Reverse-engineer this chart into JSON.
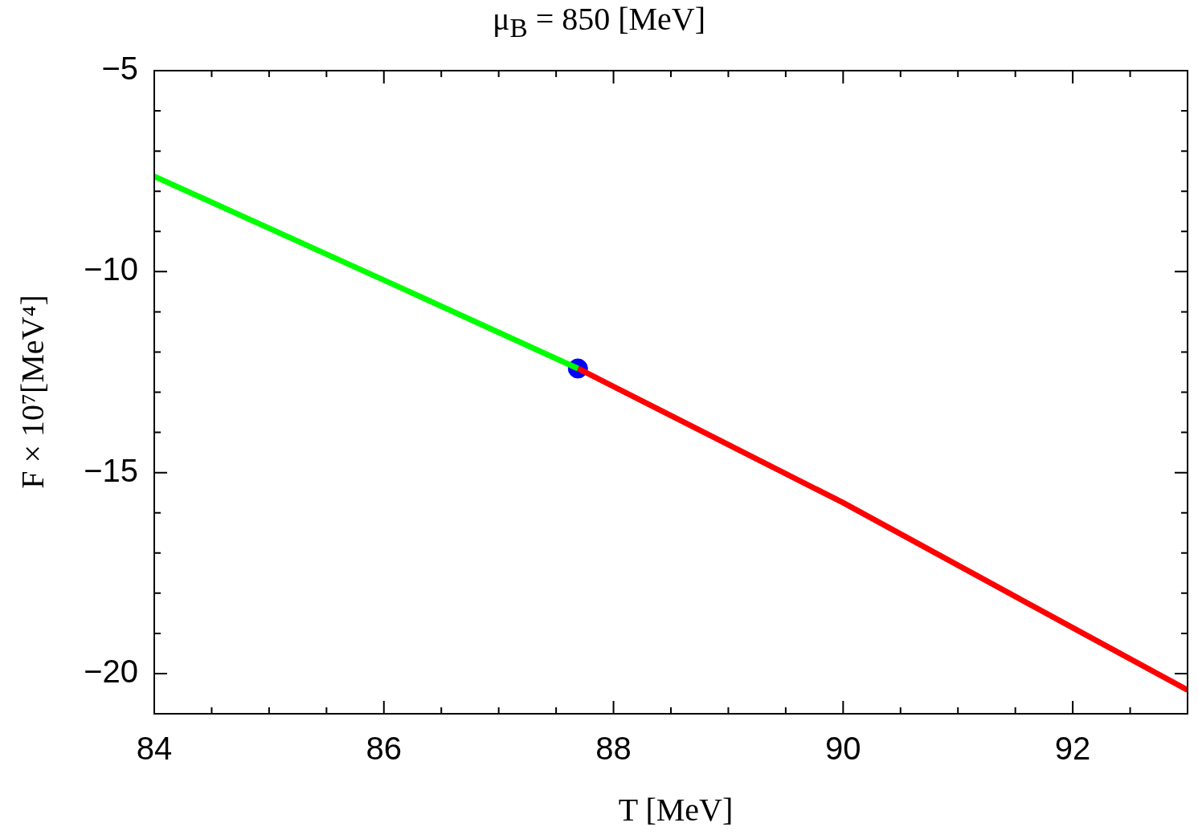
{
  "chart_data": {
    "type": "line",
    "title": "μ$_{B}$ = 850 [MeV]",
    "xlabel": "T [MeV]",
    "ylabel": "F × 10⁷[MeV⁴]",
    "xlim": [
      84,
      93
    ],
    "ylim": [
      -21,
      -5
    ],
    "xticks": [
      84,
      {
        "value": 84.5,
        "label": null
      },
      {
        "value": 85,
        "label": null
      },
      {
        "value": 85.5,
        "label": null
      },
      86,
      {
        "value": 86.5,
        "label": null
      },
      {
        "value": 87,
        "label": null
      },
      {
        "value": 87.5,
        "label": null
      },
      88,
      {
        "value": 88.5,
        "label": null
      },
      {
        "value": 89,
        "label": null
      },
      {
        "value": 89.5,
        "label": null
      },
      90,
      {
        "value": 90.5,
        "label": null
      },
      {
        "value": 91,
        "label": null
      },
      {
        "value": 91.5,
        "label": null
      },
      92,
      {
        "value": 92.5,
        "label": null
      }
    ],
    "yticks": [
      -5,
      {
        "value": -6,
        "label": null
      },
      {
        "value": -7,
        "label": null
      },
      {
        "value": -8,
        "label": null
      },
      {
        "value": -9,
        "label": null
      },
      -10,
      {
        "value": -11,
        "label": null
      },
      {
        "value": -12,
        "label": null
      },
      {
        "value": -13,
        "label": null
      },
      {
        "value": -14,
        "label": null
      },
      -15,
      {
        "value": -16,
        "label": null
      },
      {
        "value": -17,
        "label": null
      },
      {
        "value": -18,
        "label": null
      },
      {
        "value": -19,
        "label": null
      },
      -20
    ],
    "grid": false,
    "legend": false,
    "line_style": "solid",
    "series": [
      {
        "color": "#00ff00",
        "x": [
          84,
          86,
          87.69
        ],
        "values": [
          -7.63,
          -10.21,
          -12.41
        ]
      },
      {
        "color": "#ff0000",
        "x": [
          87.69,
          90,
          92,
          93
        ],
        "values": [
          -12.41,
          -15.75,
          -18.86,
          -20.41
        ]
      },
      {
        "type": "scatter",
        "marker": "circle",
        "color": "#0000ff",
        "x": [
          87.69
        ],
        "values": [
          -12.41
        ]
      }
    ]
  }
}
